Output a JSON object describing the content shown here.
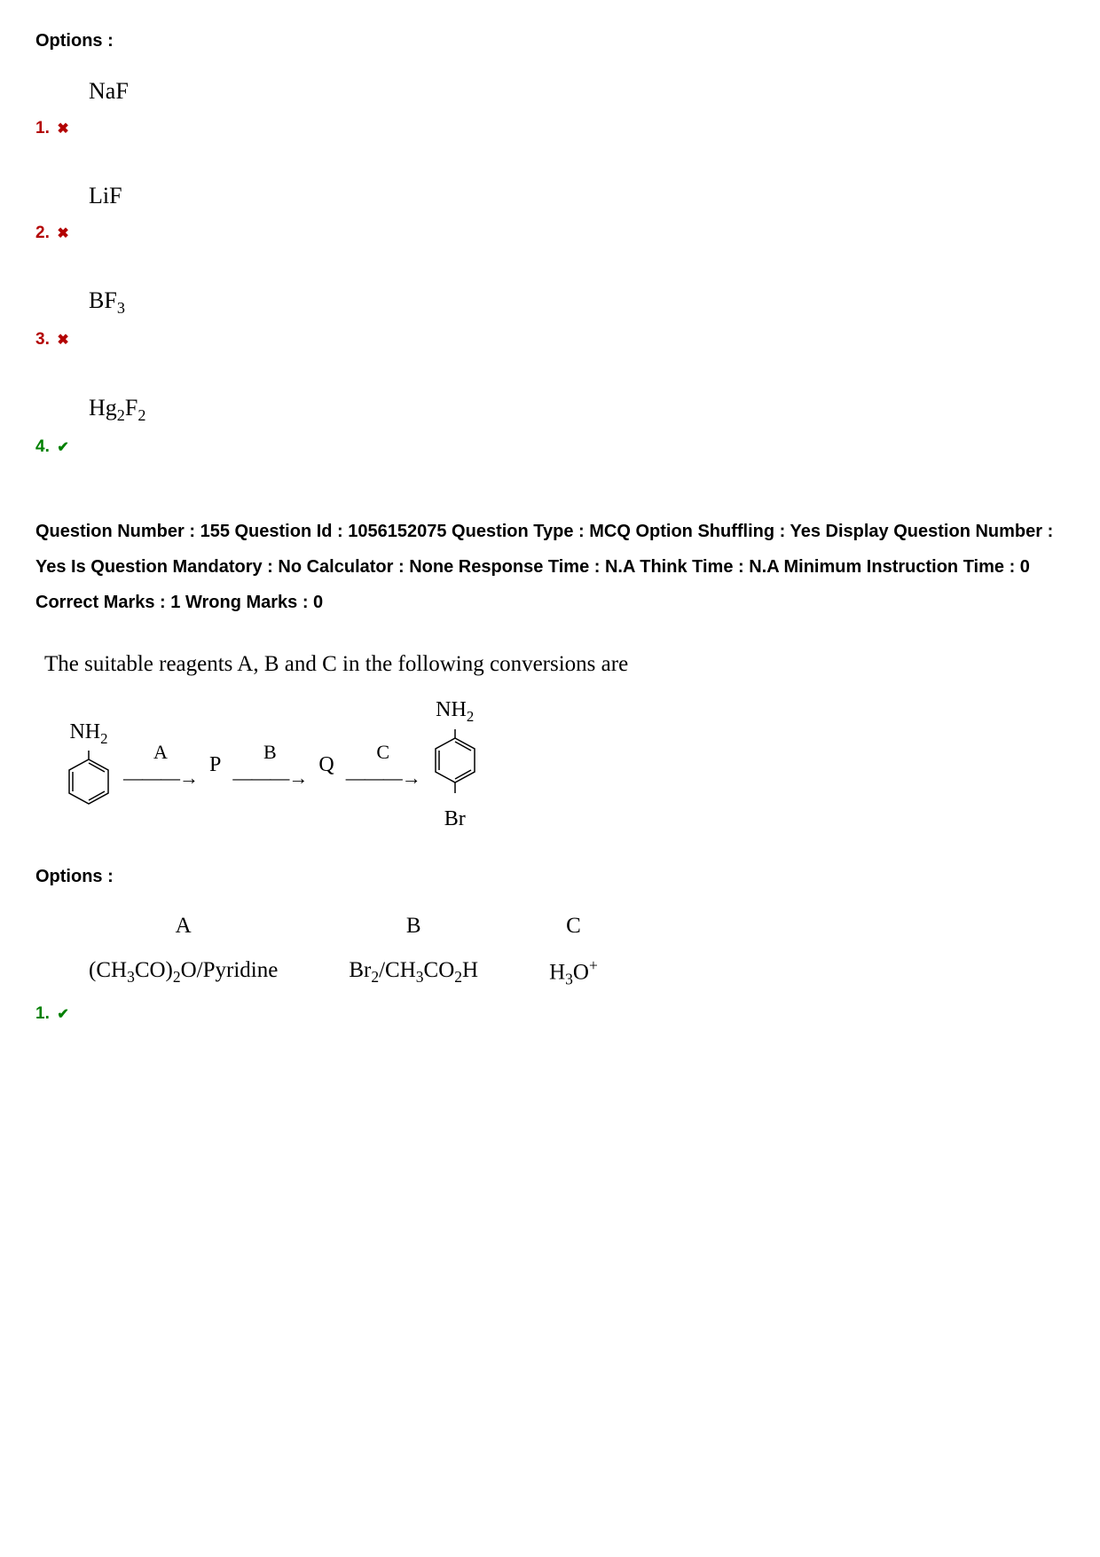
{
  "options_heading": "Options :",
  "prev_options": [
    {
      "num": "1.",
      "formula_html": "NaF",
      "status": "wrong"
    },
    {
      "num": "2.",
      "formula_html": "LiF",
      "status": "wrong"
    },
    {
      "num": "3.",
      "formula_html": "BF<sub>3</sub>",
      "status": "wrong"
    },
    {
      "num": "4.",
      "formula_html": "Hg<sub>2</sub>F<sub>2</sub>",
      "status": "correct"
    }
  ],
  "meta": {
    "line1": "Question Number : 155 Question Id : 1056152075 Question Type : MCQ Option Shuffling : Yes Display Question Number : Yes Is Question Mandatory : No Calculator : None Response Time : N.A Think Time : N.A Minimum Instruction Time : 0",
    "line2": "Correct Marks : 1 Wrong Marks : 0"
  },
  "question_text": "The suitable reagents A, B and C in the following conversions are",
  "scheme": {
    "start_label": "NH",
    "start_sub": "2",
    "reagents": [
      "A",
      "B",
      "C"
    ],
    "intermediates": [
      "P",
      "Q"
    ],
    "end_label": "NH",
    "end_sub": "2",
    "end_substituent": "Br"
  },
  "options_heading2": "Options :",
  "answer_option": {
    "num": "1.",
    "status": "correct",
    "cols": [
      {
        "hdr": "A",
        "val_html": "(CH<sub>3</sub>CO)<sub>2</sub>O/Pyridine"
      },
      {
        "hdr": "B",
        "val_html": "Br<sub>2</sub>/CH<sub>3</sub>CO<sub>2</sub>H"
      },
      {
        "hdr": "C",
        "val_html": "H<sub>3</sub>O<sup>+</sup>"
      }
    ]
  },
  "colors": {
    "wrong": "#b30000",
    "correct": "#008000",
    "text": "#000000",
    "bg": "#ffffff"
  },
  "icons": {
    "wrong": "✖",
    "correct": "✔"
  }
}
